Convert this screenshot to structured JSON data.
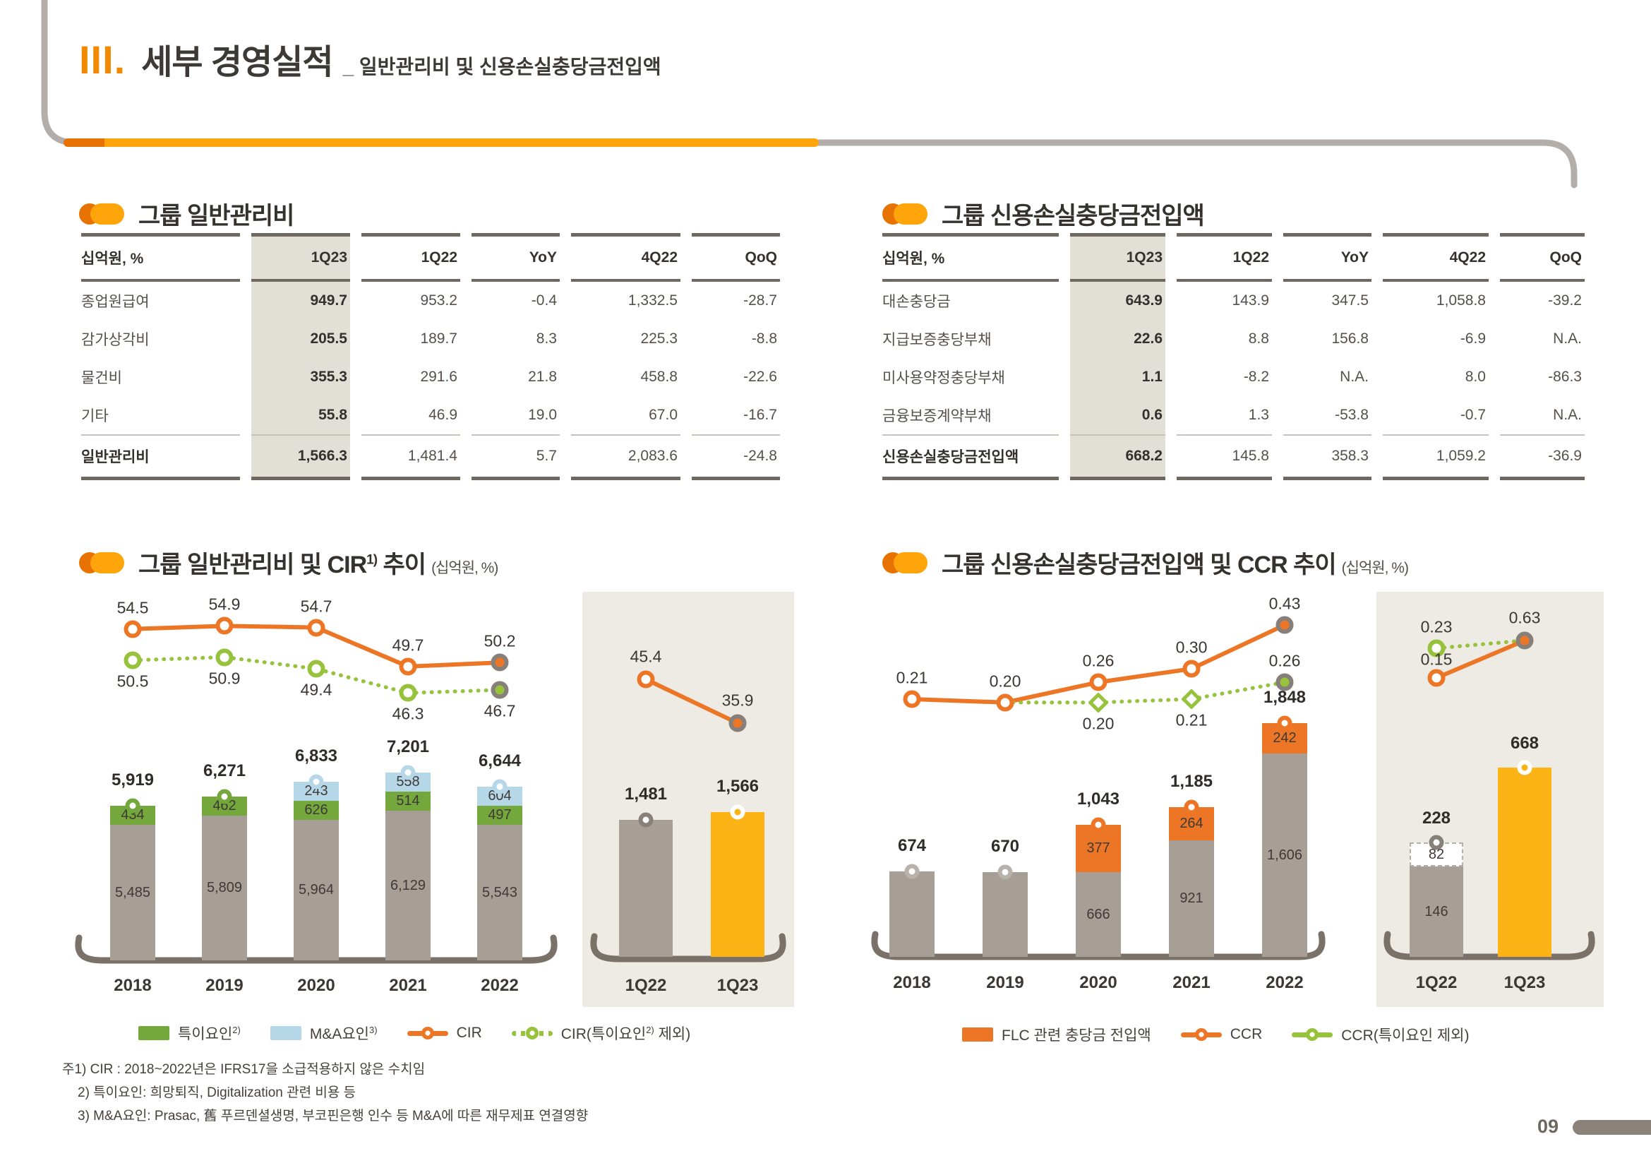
{
  "colors": {
    "accent_orange": "#f18a00",
    "line_orange": "#ec7625",
    "amber": "#fcb315",
    "bar_gray": "#a79e95",
    "bar_green": "#74a73c",
    "bar_blue": "#b6d7e7",
    "light_green": "#97c23c",
    "ring_gray": "#87807a",
    "axis": "#7a7168",
    "beige_panel": "#edebe4",
    "table_shade": "#e2dfd6",
    "dark_text": "#35312d"
  },
  "header": {
    "section_no": "III.",
    "title": "세부 경영실적",
    "subtitle": "_ 일반관리비 및 신용손실충당금전입액"
  },
  "left_table": {
    "heading": "그룹 일반관리비",
    "unit_label": "십억원, %",
    "columns": [
      "1Q23",
      "1Q22",
      "YoY",
      "4Q22",
      "QoQ"
    ],
    "rows": [
      {
        "label": "종업원급여",
        "values": [
          "949.7",
          "953.2",
          "-0.4",
          "1,332.5",
          "-28.7"
        ],
        "is_total": false
      },
      {
        "label": "감가상각비",
        "values": [
          "205.5",
          "189.7",
          "8.3",
          "225.3",
          "-8.8"
        ],
        "is_total": false
      },
      {
        "label": "물건비",
        "values": [
          "355.3",
          "291.6",
          "21.8",
          "458.8",
          "-22.6"
        ],
        "is_total": false
      },
      {
        "label": "기타",
        "values": [
          "55.8",
          "46.9",
          "19.0",
          "67.0",
          "-16.7"
        ],
        "is_total": false
      },
      {
        "label": "일반관리비",
        "values": [
          "1,566.3",
          "1,481.4",
          "5.7",
          "2,083.6",
          "-24.8"
        ],
        "is_total": true
      }
    ]
  },
  "right_table": {
    "heading": "그룹 신용손실충당금전입액",
    "unit_label": "십억원, %",
    "columns": [
      "1Q23",
      "1Q22",
      "YoY",
      "4Q22",
      "QoQ"
    ],
    "rows": [
      {
        "label": "대손충당금",
        "values": [
          "643.9",
          "143.9",
          "347.5",
          "1,058.8",
          "-39.2"
        ],
        "is_total": false
      },
      {
        "label": "지급보증충당부채",
        "values": [
          "22.6",
          "8.8",
          "156.8",
          "-6.9",
          "N.A."
        ],
        "is_total": false
      },
      {
        "label": "미사용약정충당부채",
        "values": [
          "1.1",
          "-8.2",
          "N.A.",
          "8.0",
          "-86.3"
        ],
        "is_total": false
      },
      {
        "label": "금융보증계약부채",
        "values": [
          "0.6",
          "1.3",
          "-53.8",
          "-0.7",
          "N.A."
        ],
        "is_total": false
      },
      {
        "label": "신용손실충당금전입액",
        "values": [
          "668.2",
          "145.8",
          "358.3",
          "1,059.2",
          "-36.9"
        ],
        "is_total": true
      }
    ]
  },
  "left_chart": {
    "heading_pre": "그룹 일반관리비 및 CIR",
    "heading_sup": "1)",
    "heading_post": " 추이",
    "unit": "(십억원, %)",
    "legend": [
      {
        "type": "rect",
        "color": "bar_green",
        "label": "특이요인",
        "sup": "2)",
        "post": ""
      },
      {
        "type": "rect",
        "color": "bar_blue",
        "label": "M&A요인",
        "sup": "3)",
        "post": ""
      },
      {
        "type": "line",
        "color": "line_orange",
        "label": "CIR",
        "sup": "",
        "post": ""
      },
      {
        "type": "line-dotted",
        "color": "light_green",
        "label": "CIR(특이요인",
        "sup": "2)",
        "post": " 제외)"
      }
    ]
  },
  "right_chart": {
    "heading_pre": "그룹 신용손실충당금전입액 및 CCR",
    "heading_sup": "",
    "heading_post": " 추이",
    "unit": "(십억원, %)",
    "legend": [
      {
        "type": "rect",
        "color": "line_orange",
        "label": "FLC 관련 충당금 전입액",
        "sup": "",
        "post": ""
      },
      {
        "type": "line",
        "color": "line_orange",
        "label": "CCR",
        "sup": "",
        "post": ""
      },
      {
        "type": "line",
        "color": "light_green",
        "label": "CCR(특이요인 제외)",
        "sup": "",
        "post": ""
      }
    ]
  },
  "chart_data": [
    {
      "id": "gna_cir",
      "type": "bar",
      "title": "그룹 일반관리비 및 CIR 추이",
      "unit": "십억원, %",
      "legend_position": "bottom",
      "categories": [
        "2018",
        "2019",
        "2020",
        "2021",
        "2022"
      ],
      "bar_series": [
        {
          "name": "일반관리비(특이·M&A요인 제외)",
          "color": "bar_gray",
          "values": [
            5485,
            5809,
            5964,
            6129,
            5543
          ],
          "labels": [
            "5,485",
            "5,809",
            "5,964",
            "6,129",
            "5,543"
          ]
        },
        {
          "name": "특이요인",
          "color": "bar_green",
          "values": [
            434,
            462,
            626,
            514,
            497
          ],
          "labels": [
            "434",
            "462",
            "626",
            "514",
            "497"
          ]
        },
        {
          "name": "M&A요인",
          "color": "bar_blue",
          "values": [
            null,
            null,
            243,
            558,
            604
          ],
          "labels": [
            null,
            null,
            "243",
            "558",
            "604"
          ]
        }
      ],
      "totals": [
        "5,919",
        "6,271",
        "6,833",
        "7,201",
        "6,644"
      ],
      "line_series": [
        {
          "name": "CIR",
          "color": "line_orange",
          "values": [
            54.5,
            54.9,
            54.7,
            49.7,
            50.2
          ],
          "labels": [
            "54.5",
            "54.9",
            "54.7",
            "49.7",
            "50.2"
          ]
        },
        {
          "name": "CIR(특이요인 제외)",
          "color": "light_green",
          "values": [
            50.5,
            50.9,
            49.4,
            46.3,
            46.7
          ],
          "labels": [
            "50.5",
            "50.9",
            "49.4",
            "46.3",
            "46.7"
          ]
        }
      ],
      "quarterly": {
        "categories": [
          "1Q22",
          "1Q23"
        ],
        "bars": [
          {
            "color": "bar_gray",
            "total": "1,481",
            "segments": [
              {
                "color": "bar_gray",
                "value": 1481,
                "label": null
              }
            ]
          },
          {
            "color": "amber",
            "total": "1,566",
            "segments": [
              {
                "color": "amber",
                "value": 1566,
                "label": null
              }
            ]
          }
        ],
        "lines": [
          {
            "name": "CIR",
            "color": "line_orange",
            "values": [
              45.4,
              35.9
            ],
            "labels": [
              "45.4",
              "35.9"
            ]
          }
        ]
      }
    },
    {
      "id": "provision_ccr",
      "type": "bar",
      "title": "그룹 신용손실충당금전입액 및 CCR 추이",
      "unit": "십억원, %",
      "legend_position": "bottom",
      "categories": [
        "2018",
        "2019",
        "2020",
        "2021",
        "2022"
      ],
      "bar_series": [
        {
          "name": "충당금 전입액",
          "color": "bar_gray",
          "values": [
            674,
            670,
            666,
            921,
            1606
          ],
          "labels": [
            null,
            null,
            "666",
            "921",
            "1,606"
          ]
        },
        {
          "name": "FLC 관련 충당금 전입액",
          "color": "line_orange",
          "values": [
            null,
            null,
            377,
            264,
            242
          ],
          "labels": [
            null,
            null,
            "377",
            "264",
            "242"
          ]
        }
      ],
      "totals": [
        "674",
        "670",
        "1,043",
        "1,185",
        "1,848"
      ],
      "line_series": [
        {
          "name": "CCR",
          "color": "line_orange",
          "values": [
            0.21,
            0.2,
            0.26,
            0.3,
            0.43
          ],
          "labels": [
            "0.21",
            "0.20",
            "0.26",
            "0.30",
            "0.43"
          ]
        },
        {
          "name": "CCR(특이요인 제외)",
          "color": "light_green",
          "start_index": 1,
          "values": [
            0.2,
            0.2,
            0.21,
            0.26
          ],
          "labels": [
            null,
            "0.20",
            "0.21",
            "0.26"
          ]
        }
      ],
      "quarterly": {
        "categories": [
          "1Q22",
          "1Q23"
        ],
        "bars": [
          {
            "color": "bar_gray",
            "total": "228",
            "segments": [
              {
                "color": "bar_gray",
                "value": 146,
                "label": "146"
              },
              {
                "color": "white_dashed",
                "value": 82,
                "label": "82"
              }
            ]
          },
          {
            "color": "amber",
            "total": "668",
            "segments": [
              {
                "color": "amber",
                "value": 668,
                "label": null
              }
            ]
          }
        ],
        "lines": [
          {
            "name": "CCR",
            "color": "line_orange",
            "values": [
              0.15,
              0.63
            ],
            "labels": [
              "0.15",
              "0.63"
            ]
          },
          {
            "name": "CCR(특이요인 제외)",
            "color": "light_green",
            "values": [
              0.23,
              null
            ],
            "labels": [
              "0.23",
              null
            ]
          }
        ]
      }
    }
  ],
  "footnotes": [
    "주1) CIR : 2018~2022년은 IFRS17을 소급적용하지 않은 수치임",
    "2) 특이요인: 희망퇴직, Digitalization 관련 비용 등",
    "3) M&A요인: Prasac, 舊 푸르덴셜생명, 부코핀은행 인수 등 M&A에 따른 재무제표 연결영향"
  ],
  "page_number": "09"
}
